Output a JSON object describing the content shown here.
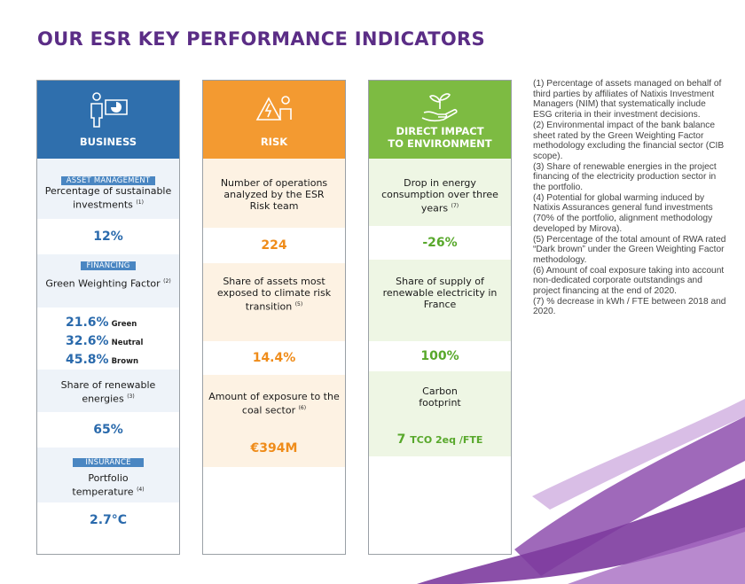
{
  "title": "OUR ESR KEY PERFORMANCE INDICATORS",
  "colors": {
    "business": "#2f6fad",
    "risk": "#f39a31",
    "environment": "#7dbb42",
    "title": "#5b2d86"
  },
  "business": {
    "header": "BUSINESS",
    "icon": "presentation-chart-icon",
    "sections": [
      {
        "band": "ASSET MANAGEMENT",
        "label": "Percentage of sustainable investments",
        "note": "(1)",
        "value": "12%"
      },
      {
        "band": "FINANCING",
        "label": "Green Weighting Factor",
        "note": "(2)",
        "mix": [
          {
            "pct": "21.6%",
            "word": "Green"
          },
          {
            "pct": "32.6%",
            "word": "Neutral"
          },
          {
            "pct": "45.8%",
            "word": "Brown"
          }
        ]
      },
      {
        "label": "Share of renewable energies",
        "note": "(3)",
        "value": "65%"
      },
      {
        "band": "INSURANCE",
        "label": "Portfolio temperature",
        "note": "(4)",
        "value": "2.7°C"
      }
    ]
  },
  "risk": {
    "header": "RISK",
    "icon": "warning-person-icon",
    "sections": [
      {
        "label": "Number of operations analyzed by the ESR Risk team",
        "value": "224"
      },
      {
        "label": "Share of assets most exposed to climate risk transition",
        "note": "(5)",
        "value": "14.4%"
      },
      {
        "label": "Amount of exposure to the coal sector",
        "note": "(6)",
        "value": "€394M"
      }
    ]
  },
  "environment": {
    "header_line1": "DIRECT IMPACT",
    "header_line2": "TO ENVIRONMENT",
    "icon": "hand-plant-icon",
    "sections": [
      {
        "label": "Drop in energy consumption over three years",
        "note": "(7)",
        "value": "-26%"
      },
      {
        "label": "Share of supply of renewable electricity in France",
        "value": "100%"
      },
      {
        "label_line1": "Carbon",
        "label_line2": "footprint",
        "value_num": "7",
        "value_unit": "TCO 2eq /FTE"
      }
    ]
  },
  "notes": [
    "(1) Percentage of assets managed on behalf of third parties by affiliates of Natixis Investment Managers (NIM) that systematically include ESG criteria in their investment decisions.",
    "(2) Environmental impact of the bank balance sheet rated by the Green Weighting Factor methodology excluding the financial sector (CIB scope).",
    "(3) Share of renewable energies in the project financing of the electricity production sector in the portfolio.",
    "(4) Potential for global warming induced by Natixis Assurances general fund investments (70% of the portfolio, alignment methodology developed by Mirova).",
    "(5) Percentage of the total amount of RWA rated “Dark brown” under the Green Weighting Factor methodology.",
    "(6) Amount of coal exposure taking into account non-dedicated corporate outstandings and project financing at the end of 2020.",
    "(7) % decrease in kWh / FTE between 2018 and 2020."
  ]
}
